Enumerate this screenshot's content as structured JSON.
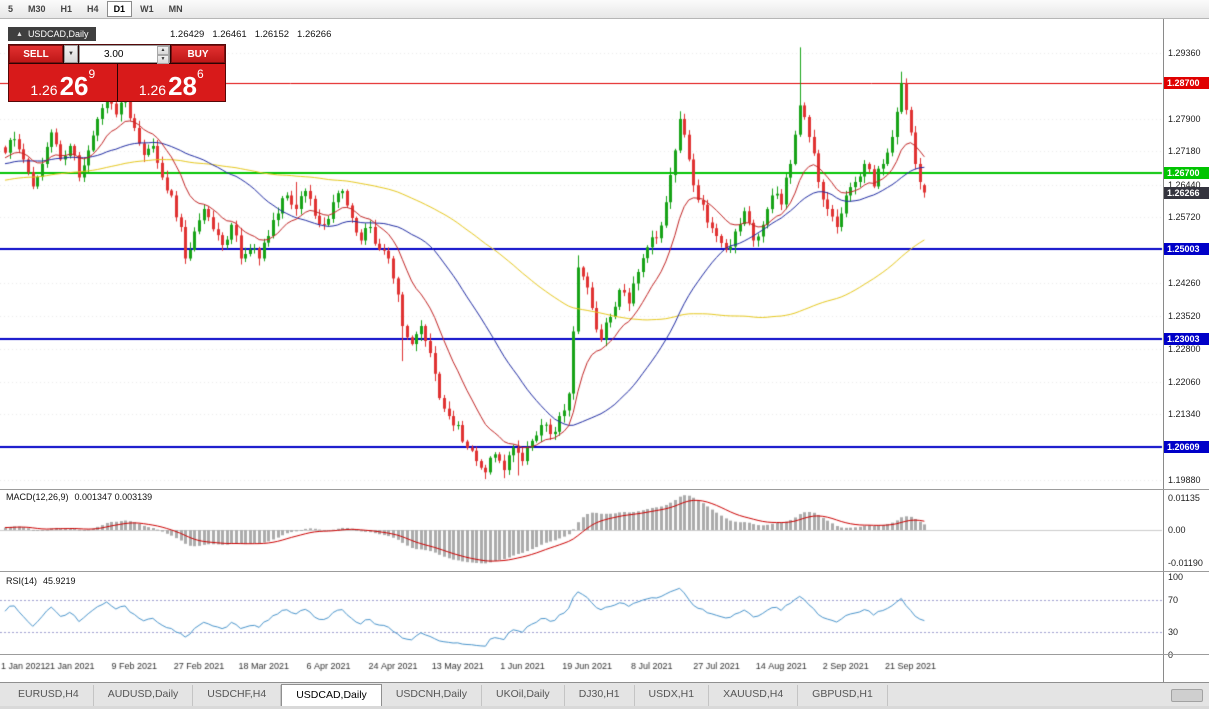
{
  "toolbar": {
    "timeframes": [
      "5",
      "M30",
      "H1",
      "H4",
      "D1",
      "W1",
      "MN"
    ],
    "active": "D1"
  },
  "chart_header": {
    "symbol": "USDCAD,Daily",
    "open": "1.26429",
    "high": "1.26461",
    "low": "1.26152",
    "close": "1.26266"
  },
  "icons": {
    "collapse": "▲",
    "caret_down": "▼",
    "spin_up": "▲",
    "spin_down": "▼"
  },
  "trade_panel": {
    "sell_label": "SELL",
    "buy_label": "BUY",
    "volume": "3.00",
    "sell_price": {
      "base": "1.26",
      "pips": "26",
      "pipette": "9"
    },
    "buy_price": {
      "base": "1.26",
      "pips": "28",
      "pipette": "6"
    }
  },
  "price_axis": {
    "labels": [
      {
        "text": "1.29360",
        "value": 1.2936
      },
      {
        "text": "1.27900",
        "value": 1.279
      },
      {
        "text": "1.27180",
        "value": 1.2718
      },
      {
        "text": "1.26440",
        "value": 1.2644
      },
      {
        "text": "1.25720",
        "value": 1.2572
      },
      {
        "text": "1.24260",
        "value": 1.2426
      },
      {
        "text": "1.23520",
        "value": 1.2352
      },
      {
        "text": "1.22800",
        "value": 1.228
      },
      {
        "text": "1.22060",
        "value": 1.2206
      },
      {
        "text": "1.21340",
        "value": 1.2134
      },
      {
        "text": "1.19880",
        "value": 1.1988
      }
    ],
    "badges": [
      {
        "text": "1.28700",
        "value": 1.287,
        "bg": "#e00000",
        "line": true,
        "lw": 1
      },
      {
        "text": "1.26700",
        "value": 1.267,
        "bg": "#00c400",
        "line": true,
        "lw": 2
      },
      {
        "text": "1.26266",
        "value": 1.26266,
        "bg": "#34343e",
        "line": false,
        "lw": 1
      },
      {
        "text": "1.25003",
        "value": 1.25003,
        "bg": "#0000c8",
        "line": true,
        "lw": 2
      },
      {
        "text": "1.23003",
        "value": 1.23003,
        "bg": "#0000c8",
        "line": true,
        "lw": 2
      },
      {
        "text": "1.20609",
        "value": 1.20609,
        "bg": "#0000c8",
        "line": true,
        "lw": 2
      }
    ]
  },
  "chart_data": {
    "type": "candlestick",
    "symbol": "USDCAD",
    "timeframe": "Daily",
    "ylim": [
      1.1968,
      1.3012
    ],
    "candle_count": 200,
    "label_every": 14,
    "close_anchors": [
      [
        0,
        1.2715
      ],
      [
        2,
        1.2745
      ],
      [
        4,
        1.27
      ],
      [
        6,
        1.264
      ],
      [
        8,
        1.269
      ],
      [
        10,
        1.276
      ],
      [
        12,
        1.27
      ],
      [
        14,
        1.273
      ],
      [
        16,
        1.266
      ],
      [
        18,
        1.272
      ],
      [
        20,
        1.279
      ],
      [
        22,
        1.285
      ],
      [
        24,
        1.28
      ],
      [
        26,
        1.2835
      ],
      [
        28,
        1.277
      ],
      [
        30,
        1.271
      ],
      [
        32,
        1.273
      ],
      [
        34,
        1.266
      ],
      [
        36,
        1.262
      ],
      [
        38,
        1.255
      ],
      [
        39,
        1.248
      ],
      [
        41,
        1.254
      ],
      [
        43,
        1.259
      ],
      [
        45,
        1.2545
      ],
      [
        47,
        1.251
      ],
      [
        49,
        1.2555
      ],
      [
        51,
        1.248
      ],
      [
        53,
        1.25
      ],
      [
        55,
        1.248
      ],
      [
        57,
        1.253
      ],
      [
        59,
        1.258
      ],
      [
        61,
        1.262
      ],
      [
        63,
        1.259
      ],
      [
        65,
        1.263
      ],
      [
        67,
        1.2575
      ],
      [
        69,
        1.2555
      ],
      [
        71,
        1.2605
      ],
      [
        73,
        1.263
      ],
      [
        75,
        1.257
      ],
      [
        77,
        1.252
      ],
      [
        79,
        1.255
      ],
      [
        81,
        1.25
      ],
      [
        83,
        1.248
      ],
      [
        85,
        1.24
      ],
      [
        86,
        1.233
      ],
      [
        88,
        1.229
      ],
      [
        90,
        1.233
      ],
      [
        92,
        1.227
      ],
      [
        94,
        1.217
      ],
      [
        96,
        1.213
      ],
      [
        98,
        1.211
      ],
      [
        100,
        1.206
      ],
      [
        102,
        1.203
      ],
      [
        104,
        1.2005
      ],
      [
        106,
        1.2045
      ],
      [
        108,
        1.201
      ],
      [
        110,
        1.206
      ],
      [
        112,
        1.203
      ],
      [
        114,
        1.2075
      ],
      [
        116,
        1.211
      ],
      [
        118,
        1.209
      ],
      [
        120,
        1.213
      ],
      [
        122,
        1.218
      ],
      [
        124,
        1.246
      ],
      [
        125,
        1.244
      ],
      [
        127,
        1.237
      ],
      [
        129,
        1.23
      ],
      [
        131,
        1.235
      ],
      [
        133,
        1.241
      ],
      [
        135,
        1.238
      ],
      [
        137,
        1.245
      ],
      [
        139,
        1.2505
      ],
      [
        141,
        1.2525
      ],
      [
        143,
        1.2605
      ],
      [
        145,
        1.272
      ],
      [
        146,
        1.279
      ],
      [
        148,
        1.27
      ],
      [
        150,
        1.261
      ],
      [
        152,
        1.256
      ],
      [
        154,
        1.253
      ],
      [
        156,
        1.25
      ],
      [
        158,
        1.254
      ],
      [
        160,
        1.2585
      ],
      [
        162,
        1.252
      ],
      [
        164,
        1.2555
      ],
      [
        166,
        1.262
      ],
      [
        168,
        1.26
      ],
      [
        170,
        1.269
      ],
      [
        172,
        1.282
      ],
      [
        174,
        1.275
      ],
      [
        176,
        1.265
      ],
      [
        178,
        1.259
      ],
      [
        180,
        1.255
      ],
      [
        182,
        1.262
      ],
      [
        184,
        1.265
      ],
      [
        186,
        1.269
      ],
      [
        188,
        1.264
      ],
      [
        190,
        1.269
      ],
      [
        192,
        1.275
      ],
      [
        194,
        1.287
      ],
      [
        195,
        1.281
      ],
      [
        196,
        1.276
      ],
      [
        197,
        1.269
      ],
      [
        198,
        1.265
      ],
      [
        199,
        1.2627
      ]
    ],
    "high_overrides": {
      "22": 1.2881,
      "63": 1.265,
      "124": 1.2487,
      "146": 1.2807,
      "172": 1.2949,
      "194": 1.2895
    },
    "low_overrides": {
      "39": 1.2468,
      "86": 1.2252,
      "104": 1.199,
      "108": 1.1992,
      "111": 1.1998
    },
    "last_candle": [
      1.26429,
      1.26461,
      1.26152,
      1.26266
    ],
    "moving_averages": [
      {
        "name": "slow",
        "type": "sma",
        "period": 89,
        "color": "#e6c81e"
      },
      {
        "name": "medium",
        "type": "sma",
        "period": 34,
        "color": "#1f2ba3"
      },
      {
        "name": "fast",
        "type": "ema",
        "period": 13,
        "color": "#c22525"
      }
    ],
    "date_labels": [
      "1 Jan 2021",
      "21 Jan 2021",
      "9 Feb 2021",
      "27 Feb 2021",
      "18 Mar 2021",
      "6 Apr 2021",
      "24 Apr 2021",
      "13 May 2021",
      "1 Jun 2021",
      "19 Jun 2021",
      "8 Jul 2021",
      "27 Jul 2021",
      "14 Aug 2021",
      "2 Sep 2021",
      "21 Sep 2021"
    ],
    "macd": {
      "label": "MACD(12,26,9)",
      "values": "0.001347 0.003139",
      "params": [
        12,
        26,
        9
      ],
      "ylim": [
        -0.01464,
        0.01428
      ],
      "axis": [
        {
          "text": "0.01135",
          "value": 0.01135
        },
        {
          "text": "0.00",
          "value": 0
        },
        {
          "text": "-0.01190",
          "value": -0.0119
        }
      ]
    },
    "rsi": {
      "label": "RSI(14)",
      "value": "45.9219",
      "period": 14,
      "ylim": [
        1.3,
        106.4
      ],
      "levels": [
        70,
        30
      ],
      "axis": [
        {
          "text": "100",
          "value": 100
        },
        {
          "text": "70",
          "value": 70
        },
        {
          "text": "30",
          "value": 30
        },
        {
          "text": "0",
          "value": 0
        }
      ]
    }
  },
  "tabs": {
    "items": [
      "EURUSD,H4",
      "AUDUSD,Daily",
      "USDCHF,H4",
      "USDCAD,Daily",
      "USDCNH,Daily",
      "UKOil,Daily",
      "DJ30,H1",
      "USDX,H1",
      "XAUUSD,H4",
      "GBPUSD,H1"
    ],
    "active": "USDCAD,Daily"
  },
  "colors": {
    "up": "#17a317",
    "down": "#e03232",
    "macd_hist": "#ababab",
    "macd_signal": "#cc0000",
    "rsi_line": "#4a95cc",
    "rsi_levels": "#9f9fd0",
    "grid": "#ebebeb",
    "date_text": "#333333"
  }
}
